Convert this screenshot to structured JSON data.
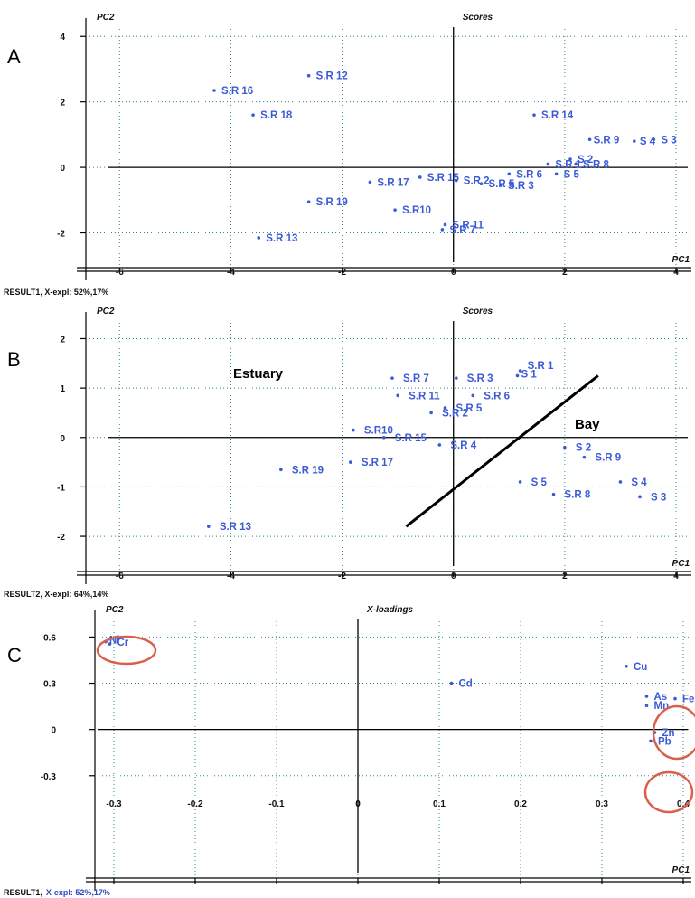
{
  "chart_data": [
    {
      "panel_letter": "A",
      "type": "scatter",
      "title": "Scores",
      "xlabel": "PC1",
      "ylabel": "PC2",
      "xlim": [
        -6.2,
        4.0
      ],
      "ylim": [
        -2.4,
        4.2
      ],
      "xticks": [
        "-6",
        "-4",
        "-2",
        "0",
        "2",
        "4"
      ],
      "yticks": [
        "-2",
        "0",
        "2",
        "4"
      ],
      "xtick_values": [
        -6,
        -4,
        -2,
        0,
        2,
        4
      ],
      "ytick_values": [
        -2,
        0,
        2,
        4
      ],
      "grid": true,
      "footer": "RESULT1, X-expl: 52%,17%",
      "points": [
        {
          "label": "S.R 12",
          "x": -2.6,
          "y": 2.8
        },
        {
          "label": "S.R 16",
          "x": -4.3,
          "y": 2.35
        },
        {
          "label": "S.R 18",
          "x": -3.6,
          "y": 1.6
        },
        {
          "label": "S.R 14",
          "x": 1.45,
          "y": 1.6
        },
        {
          "label": "S.R 9",
          "x": 2.45,
          "y": 0.85
        },
        {
          "label": "S 4",
          "x": 3.25,
          "y": 0.8
        },
        {
          "label": "S 3",
          "x": 3.6,
          "y": 0.85
        },
        {
          "label": "S 2",
          "x": 2.1,
          "y": 0.25
        },
        {
          "label": "S.R 1",
          "x": 1.7,
          "y": 0.1
        },
        {
          "label": "S.R 8",
          "x": 2.2,
          "y": 0.1
        },
        {
          "label": "S 5",
          "x": 1.85,
          "y": -0.2
        },
        {
          "label": "S.R 6",
          "x": 1.0,
          "y": -0.2
        },
        {
          "label": "S.R 15",
          "x": -0.6,
          "y": -0.3
        },
        {
          "label": "S.R 2",
          "x": 0.05,
          "y": -0.4
        },
        {
          "label": "S.R 5",
          "x": 0.5,
          "y": -0.5
        },
        {
          "label": "S.R 3",
          "x": 0.85,
          "y": -0.55
        },
        {
          "label": "S.R 17",
          "x": -1.5,
          "y": -0.45
        },
        {
          "label": "S.R 19",
          "x": -2.6,
          "y": -1.05
        },
        {
          "label": "S.R10",
          "x": -1.05,
          "y": -1.3
        },
        {
          "label": "S.R 11",
          "x": -0.15,
          "y": -1.75
        },
        {
          "label": "S.R 7",
          "x": -0.2,
          "y": -1.9
        },
        {
          "label": "S.R 13",
          "x": -3.5,
          "y": -2.15
        }
      ]
    },
    {
      "panel_letter": "B",
      "type": "scatter",
      "title": "Scores",
      "xlabel": "PC1",
      "ylabel": "PC2",
      "xlim": [
        -6.2,
        4.0
      ],
      "ylim": [
        -2.2,
        2.1
      ],
      "xticks": [
        "-6",
        "-4",
        "-2",
        "0",
        "2",
        "4"
      ],
      "yticks": [
        "-2",
        "-1",
        "0",
        "1",
        "2"
      ],
      "xtick_values": [
        -6,
        -4,
        -2,
        0,
        2,
        4
      ],
      "ytick_values": [
        -2,
        -1,
        0,
        1,
        2
      ],
      "grid": true,
      "footer": "RESULT2, X-expl: 64%,14%",
      "annotations": [
        "Estuary",
        "Bay"
      ],
      "points": [
        {
          "label": "S.R 1",
          "x": 1.2,
          "y": 1.35
        },
        {
          "label": "S 1",
          "x": 1.15,
          "y": 1.25
        },
        {
          "label": "S.R 7",
          "x": -1.1,
          "y": 1.2
        },
        {
          "label": "S.R 3",
          "x": 0.05,
          "y": 1.2
        },
        {
          "label": "S.R 11",
          "x": -1.0,
          "y": 0.85
        },
        {
          "label": "S.R 6",
          "x": 0.35,
          "y": 0.85
        },
        {
          "label": "S.R 5",
          "x": -0.15,
          "y": 0.6
        },
        {
          "label": "S.R 2",
          "x": -0.4,
          "y": 0.5
        },
        {
          "label": "S.R10",
          "x": -1.8,
          "y": 0.15
        },
        {
          "label": "S.R 15",
          "x": -1.25,
          "y": 0.0
        },
        {
          "label": "S.R 4",
          "x": -0.25,
          "y": -0.15
        },
        {
          "label": "S 2",
          "x": 2.0,
          "y": -0.2
        },
        {
          "label": "S.R 9",
          "x": 2.35,
          "y": -0.4
        },
        {
          "label": "S.R 17",
          "x": -1.85,
          "y": -0.5
        },
        {
          "label": "S.R 19",
          "x": -3.1,
          "y": -0.65
        },
        {
          "label": "S 5",
          "x": 1.2,
          "y": -0.9
        },
        {
          "label": "S 4",
          "x": 3.0,
          "y": -0.9
        },
        {
          "label": "S.R 8",
          "x": 1.8,
          "y": -1.15
        },
        {
          "label": "S 3",
          "x": 3.35,
          "y": -1.2
        },
        {
          "label": "S.R 13",
          "x": -4.4,
          "y": -1.8
        }
      ]
    },
    {
      "panel_letter": "C",
      "type": "scatter",
      "title": "X-loadings",
      "xlabel": "PC1",
      "ylabel": "PC2",
      "xlim": [
        -0.32,
        0.4
      ],
      "ylim": [
        -0.36,
        0.62
      ],
      "xticks": [
        "-0.3",
        "-0.2",
        "-0.1",
        "0",
        "0.1",
        "0.2",
        "0.3",
        "0.4"
      ],
      "yticks": [
        "-0.3",
        "0",
        "0.3",
        "0.6"
      ],
      "xtick_values": [
        -0.3,
        -0.2,
        -0.1,
        0,
        0.1,
        0.2,
        0.3,
        0.4
      ],
      "ytick_values": [
        -0.3,
        0,
        0.3,
        0.6
      ],
      "grid": true,
      "footer_black": "RESULT1,",
      "footer_blue": "X-expl: 52%,17%",
      "points": [
        {
          "label": "Ni",
          "x": -0.31,
          "y": 0.57
        },
        {
          "label": "Cr",
          "x": -0.305,
          "y": 0.555
        },
        {
          "label": "Cu",
          "x": 0.33,
          "y": 0.41
        },
        {
          "label": "Cd",
          "x": 0.115,
          "y": 0.3
        },
        {
          "label": "As",
          "x": 0.355,
          "y": 0.215
        },
        {
          "label": "Fe",
          "x": 0.39,
          "y": 0.2
        },
        {
          "label": "Mn",
          "x": 0.355,
          "y": 0.155
        },
        {
          "label": "Zn",
          "x": 0.365,
          "y": -0.02
        },
        {
          "label": "Pb",
          "x": 0.36,
          "y": -0.075
        }
      ]
    }
  ]
}
